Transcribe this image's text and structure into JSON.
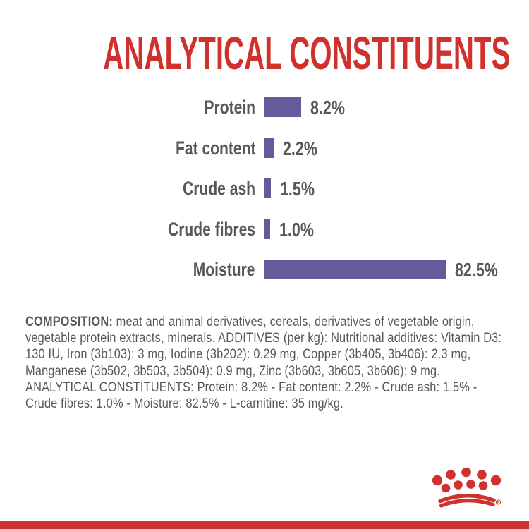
{
  "title": {
    "text": "ANALYTICAL CONSTITUENTS"
  },
  "chart_data": {
    "type": "bar",
    "orientation": "horizontal",
    "title": "ANALYTICAL CONSTITUENTS",
    "categories": [
      "Protein",
      "Fat content",
      "Crude ash",
      "Crude fibres",
      "Moisture"
    ],
    "values": [
      8.2,
      2.2,
      1.5,
      1.0,
      82.5
    ],
    "value_labels": [
      "8.2%",
      "2.2%",
      "1.5%",
      "1.0%",
      "82.5%"
    ],
    "unit": "%",
    "grid": false,
    "legend": false,
    "axis_ticks": false
  },
  "composition": {
    "lead": "COMPOSITION:",
    "body": " meat and animal derivatives, cereals, derivatives of vegetable origin, vegetable protein extracts, minerals. ADDITIVES (per kg): Nutritional additives: Vitamin D3: 130 IU, Iron (3b103): 3 mg, Iodine (3b202): 0.29 mg, Copper (3b405, 3b406): 2.3 mg, Manganese (3b502, 3b503, 3b504): 0.9 mg, Zinc (3b603, 3b605, 3b606): 9 mg. ANALYTICAL CONSTITUENTS: Protein: 8.2% - Fat content: 2.2% - Crude ash: 1.5% - Crude fibres: 1.0% - Moisture: 82.5% - L-carnitine: 35 mg/kg."
  },
  "branding": {
    "logo": "royal-canin-crown",
    "registered_mark": "R"
  },
  "colors": {
    "accent_red": "#d0312d",
    "bar_purple": "#665a9b",
    "text_gray": "#58585a"
  }
}
